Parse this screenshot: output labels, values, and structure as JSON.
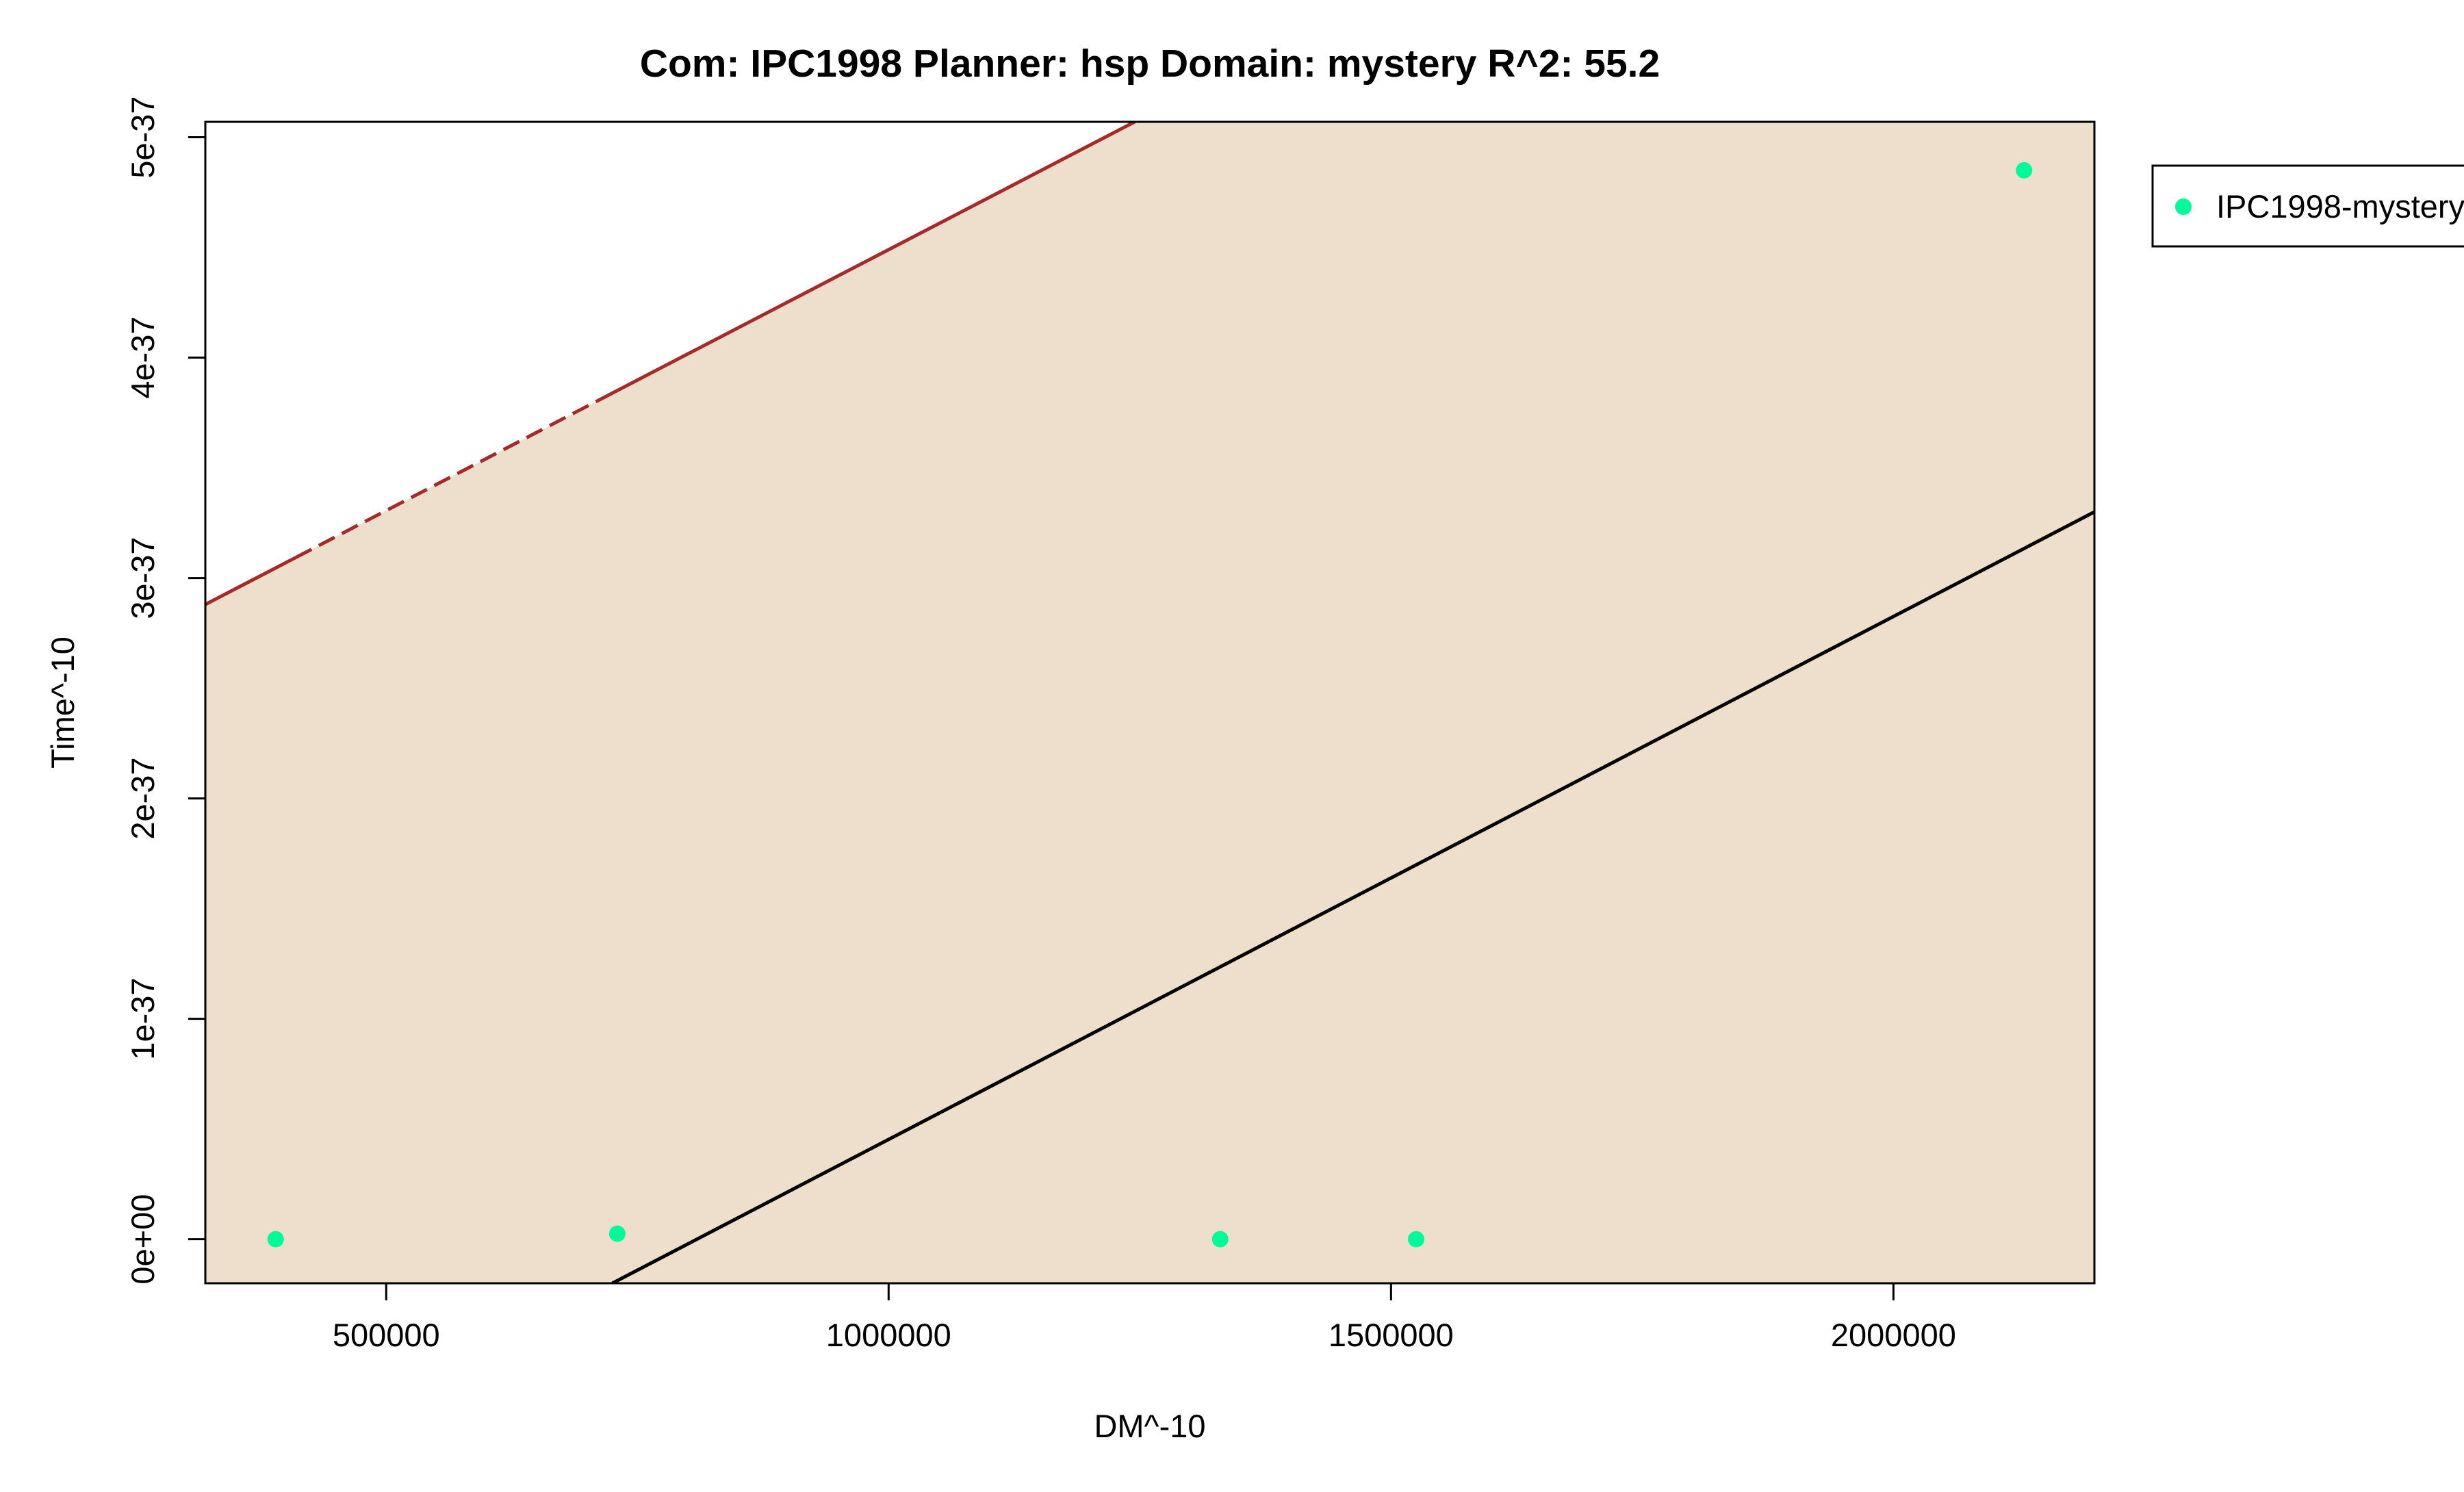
{
  "chart_data": {
    "type": "scatter",
    "title": "Com: IPC1998 Planner: hsp Domain: mystery R^2: 55.2",
    "xlabel": "DM^-10",
    "ylabel": "Time^-10",
    "xlim": [
      320000,
      2200000
    ],
    "ylim": [
      -2e-38,
      5.07e-37
    ],
    "x_ticks": [
      500000,
      1000000,
      1500000,
      2000000
    ],
    "x_tick_labels": [
      "500000",
      "1000000",
      "1500000",
      "2000000"
    ],
    "y_ticks": [
      0,
      1e-37,
      2e-37,
      3e-37,
      4e-37,
      5e-37
    ],
    "y_tick_labels": [
      "0e+00",
      "1e-37",
      "2e-37",
      "3e-37",
      "4e-37",
      "5e-37"
    ],
    "grid": false,
    "legend_position": "right, outside plot area",
    "series": [
      {
        "name": "IPC1998-mystery",
        "color": "#00FA9A",
        "x": [
          390000,
          730000,
          1330000,
          1525000,
          2130000
        ],
        "y": [
          0,
          2.5e-39,
          0,
          0,
          4.85e-37
        ]
      }
    ],
    "fit_line": {
      "color": "#000000",
      "points": [
        [
          725000,
          -2e-38
        ],
        [
          2200000,
          3.3e-37
        ]
      ]
    },
    "upper_band_line": {
      "color": "#A52A2A",
      "points": [
        [
          320000,
          2.88e-37
        ],
        [
          1245000,
          5.07e-37
        ]
      ],
      "dashed_x_range": [
        410000,
        720000
      ]
    },
    "band_fill_color": "#EEDFCC"
  }
}
